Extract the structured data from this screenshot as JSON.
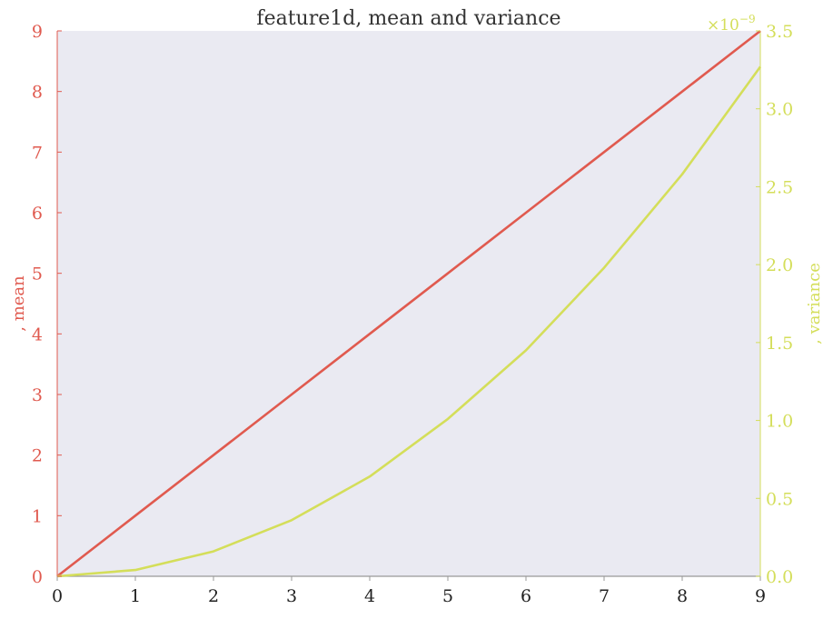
{
  "chart_data": {
    "type": "line",
    "title": "feature1d, mean and variance",
    "x": [
      0,
      1,
      2,
      3,
      4,
      5,
      6,
      7,
      8,
      9
    ],
    "xlim": [
      0,
      9
    ],
    "x_ticks": [
      "0",
      "1",
      "2",
      "3",
      "4",
      "5",
      "6",
      "7",
      "8",
      "9"
    ],
    "series": [
      {
        "key": "mean",
        "axis": "left",
        "color": "#e05a4f",
        "values": [
          0,
          1,
          2,
          3,
          4,
          5,
          6,
          7,
          8,
          9
        ]
      },
      {
        "key": "variance",
        "axis": "right",
        "color": "#d4de5a",
        "values": [
          0.0,
          0.04,
          0.16,
          0.36,
          0.64,
          1.01,
          1.45,
          1.98,
          2.58,
          3.27
        ]
      }
    ],
    "y_left": {
      "label": ", mean",
      "ylim": [
        0,
        9
      ],
      "ticks": [
        "0",
        "1",
        "2",
        "3",
        "4",
        "5",
        "6",
        "7",
        "8",
        "9"
      ],
      "color": "#e05a4f"
    },
    "y_right": {
      "label": ", variance",
      "ylim": [
        0,
        3.5
      ],
      "ticks": [
        "0.0",
        "0.5",
        "1.0",
        "1.5",
        "2.0",
        "2.5",
        "3.0",
        "3.5"
      ],
      "multiplier_base": "×10",
      "multiplier_exp": "−9",
      "color": "#d4de5a"
    },
    "plot_background": "#eaeaf2",
    "grid": false,
    "legend": "none"
  }
}
